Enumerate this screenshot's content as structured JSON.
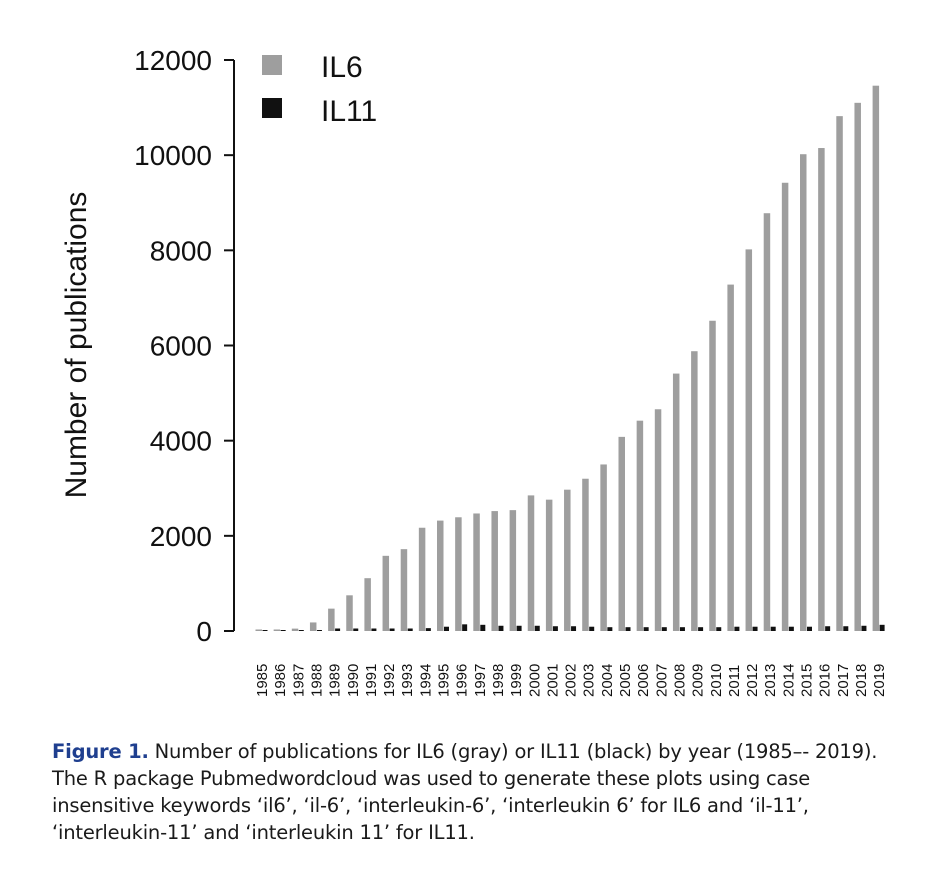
{
  "chart_data": {
    "type": "bar",
    "ylabel": "Number of publications",
    "xlabel": "",
    "ylim": [
      0,
      12000
    ],
    "yticks": [
      "0",
      "2000",
      "4000",
      "6000",
      "8000",
      "10000",
      "12000"
    ],
    "legend_placement": "top-left",
    "grid": false,
    "categories": [
      "1985",
      "1986",
      "1987",
      "1988",
      "1989",
      "1990",
      "1991",
      "1992",
      "1993",
      "1994",
      "1995",
      "1996",
      "1997",
      "1998",
      "1999",
      "2000",
      "2001",
      "2002",
      "2003",
      "2004",
      "2005",
      "2006",
      "2007",
      "2008",
      "2009",
      "2010",
      "2011",
      "2012",
      "2013",
      "2014",
      "2015",
      "2016",
      "2017",
      "2018",
      "2019"
    ],
    "series": [
      {
        "name": "IL6",
        "color": "#9e9e9e",
        "values": [
          20,
          30,
          50,
          180,
          470,
          750,
          1110,
          1580,
          1720,
          2170,
          2320,
          2390,
          2470,
          2520,
          2540,
          2850,
          2760,
          2970,
          3200,
          3500,
          4080,
          4420,
          4660,
          5410,
          5880,
          6520,
          7280,
          8020,
          8780,
          9420,
          10020,
          10150,
          10820,
          11100,
          11460
        ]
      },
      {
        "name": "IL11",
        "color": "#111111",
        "values": [
          0,
          0,
          0,
          0,
          5,
          10,
          20,
          30,
          40,
          60,
          90,
          140,
          130,
          110,
          110,
          110,
          100,
          100,
          90,
          80,
          80,
          80,
          80,
          80,
          80,
          80,
          90,
          90,
          90,
          90,
          90,
          100,
          100,
          110,
          130
        ]
      }
    ]
  },
  "caption": {
    "label": "Figure 1.",
    "text": " Number of publications for IL6 (gray) or IL11 (black) by year (1985–- 2019). The R package Pubmedwordcloud was used to generate these plots using case insensitive keywords ‘il6’, ‘il-6’, ‘interleukin-6’, ‘interleukin 6’ for IL6 and ‘il-11’, ‘interleukin-11’ and ‘interleukin 11’ for IL11."
  }
}
